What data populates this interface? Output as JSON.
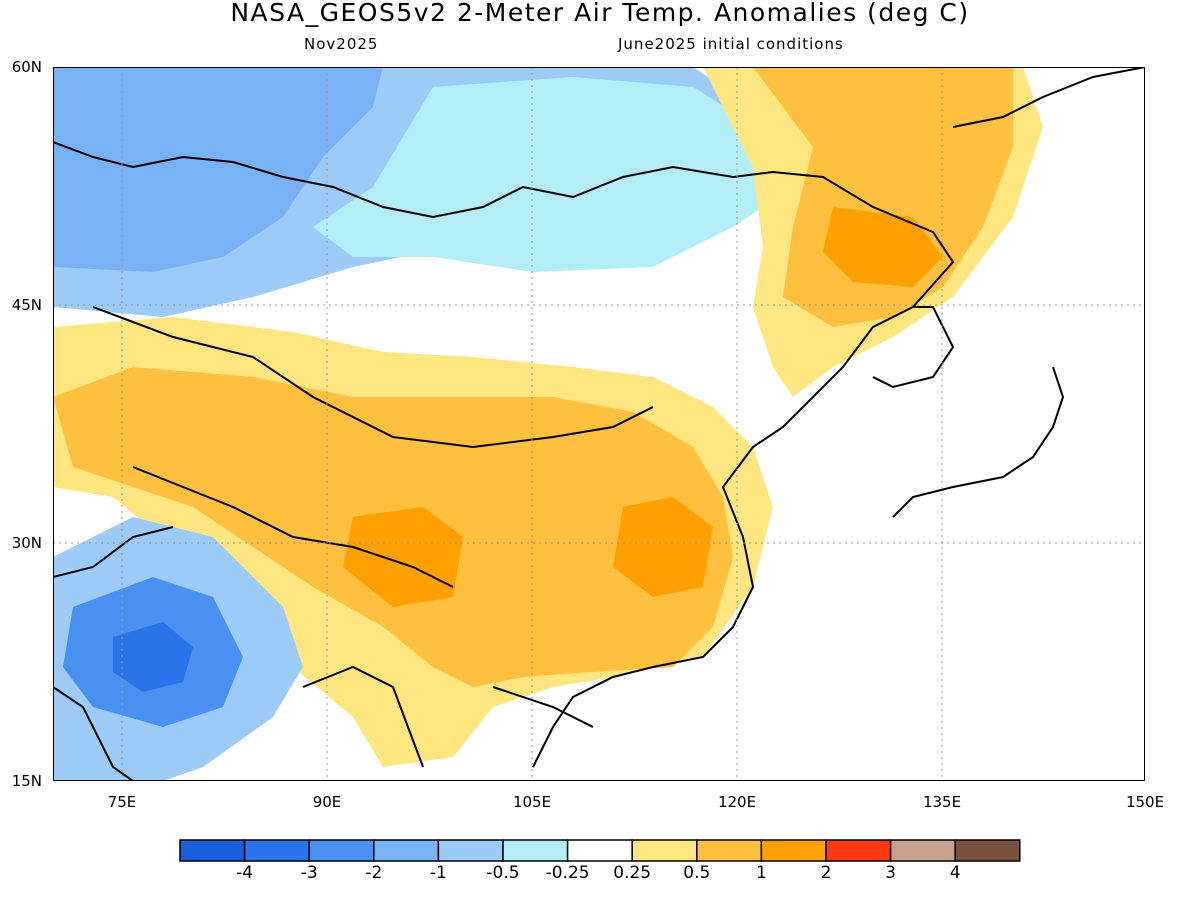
{
  "header": {
    "title": "NASA_GEOS5v2 2-Meter Air Temp. Anomalies (deg C)",
    "month": "Nov2025",
    "initial_conditions": "June2025 initial conditions"
  },
  "axes": {
    "lat_labels": [
      "60N",
      "45N",
      "30N",
      "15N"
    ],
    "lon_labels": [
      "75E",
      "90E",
      "105E",
      "120E",
      "135E",
      "150E"
    ],
    "lat_range": [
      15,
      60
    ],
    "lon_range": [
      70,
      150
    ]
  },
  "legend": {
    "labels": [
      "-4",
      "-3",
      "-2",
      "-1",
      "-0.5",
      "-0.25",
      "0.25",
      "0.5",
      "1",
      "2",
      "3",
      "4"
    ],
    "colors": [
      "#1a5fd9",
      "#2b73e8",
      "#4a90f0",
      "#78b2f5",
      "#9dcbf7",
      "#b3eef7",
      "#ffffff",
      "#ffe680",
      "#ffc040",
      "#ffa000",
      "#ff3a10",
      "#c8a090",
      "#7a5040"
    ]
  },
  "map_regions": [
    {
      "name": "cold-siberia-west",
      "color": "#78b2f5"
    },
    {
      "name": "cold-india",
      "color": "#2b73e8"
    },
    {
      "name": "warm-china",
      "color": "#ffc040"
    },
    {
      "name": "warm-far-east",
      "color": "#ffa000"
    }
  ]
}
